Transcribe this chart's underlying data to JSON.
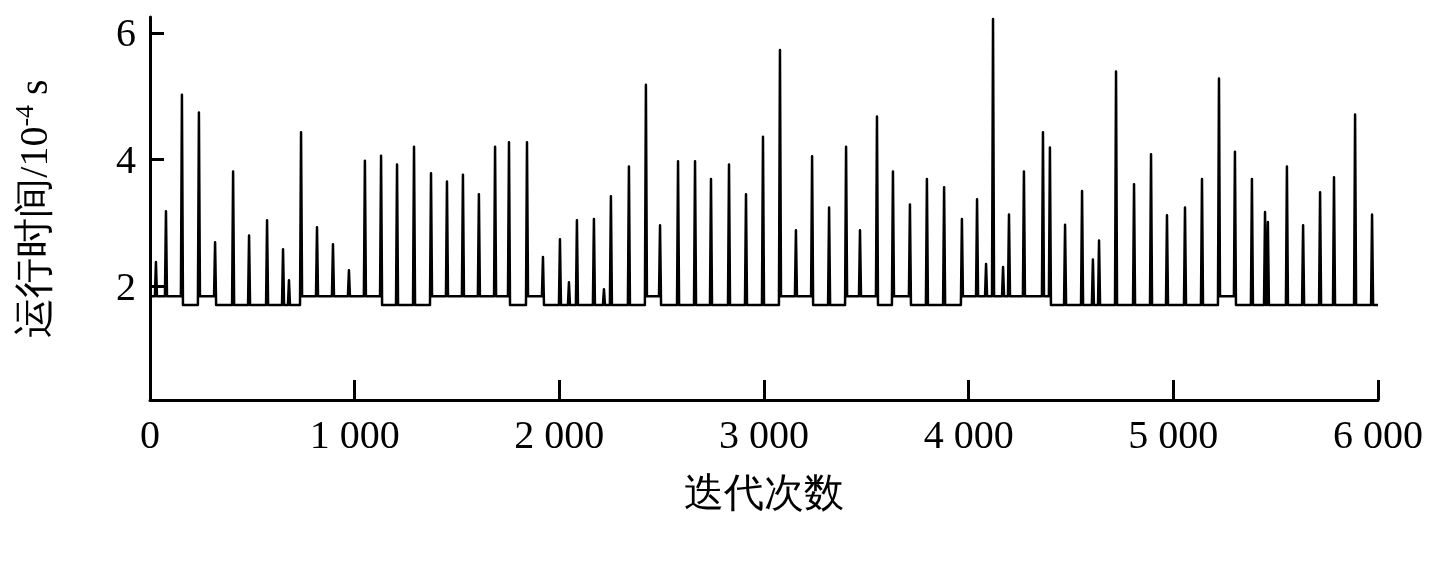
{
  "chart_data": {
    "type": "line",
    "xlabel": "迭代次数",
    "ylabel": "运行时间/10$^{-4}$ s",
    "xlim": [
      0,
      6000
    ],
    "ylim": [
      0.2,
      6.25
    ],
    "xticks": [
      0,
      {
        "value": 1000,
        "label": "1 000"
      },
      {
        "value": 2000,
        "label": "2 000"
      },
      {
        "value": 3000,
        "label": "3 000"
      },
      {
        "value": 4000,
        "label": "4 000"
      },
      {
        "value": 5000,
        "label": "5 000"
      },
      {
        "value": 6000,
        "label": "6 000"
      }
    ],
    "yticks": [
      2,
      4,
      6
    ],
    "x": [
      0,
      24,
      29,
      34,
      73,
      78,
      83,
      151,
      156,
      161,
      234,
      239,
      244,
      313,
      318,
      323,
      401,
      406,
      411,
      479,
      484,
      489,
      567,
      572,
      577,
      645,
      650,
      655,
      674,
      679,
      684,
      733,
      738,
      743,
      811,
      816,
      821,
      889,
      894,
      899,
      967,
      972,
      977,
      1045,
      1050,
      1055,
      1124,
      1129,
      1134,
      1202,
      1207,
      1212,
      1285,
      1290,
      1295,
      1368,
      1373,
      1378,
      1446,
      1451,
      1456,
      1524,
      1529,
      1534,
      1602,
      1607,
      1612,
      1681,
      1686,
      1691,
      1749,
      1754,
      1759,
      1837,
      1842,
      1847,
      1915,
      1920,
      1925,
      1998,
      2003,
      2008,
      2042,
      2047,
      2052,
      2081,
      2086,
      2091,
      2164,
      2169,
      2174,
      2213,
      2218,
      2223,
      2247,
      2252,
      2257,
      2335,
      2340,
      2345,
      2418,
      2423,
      2428,
      2487,
      2492,
      2497,
      2575,
      2580,
      2585,
      2658,
      2663,
      2668,
      2736,
      2741,
      2746,
      2824,
      2829,
      2834,
      2907,
      2912,
      2917,
      2990,
      2995,
      3000,
      3073,
      3078,
      3083,
      3151,
      3156,
      3161,
      3230,
      3235,
      3240,
      3313,
      3318,
      3323,
      3396,
      3401,
      3406,
      3464,
      3469,
      3474,
      3547,
      3552,
      3557,
      3625,
      3630,
      3635,
      3708,
      3713,
      3718,
      3791,
      3796,
      3801,
      3875,
      3880,
      3885,
      3962,
      3967,
      3972,
      4036,
      4041,
      4046,
      4080,
      4085,
      4090,
      4114,
      4119,
      4124,
      4163,
      4168,
      4173,
      4192,
      4197,
      4202,
      4265,
      4270,
      4275,
      4358,
      4363,
      4368,
      4392,
      4397,
      4402,
      4466,
      4471,
      4476,
      4549,
      4554,
      4559,
      4602,
      4607,
      4612,
      4632,
      4637,
      4642,
      4715,
      4720,
      4725,
      4803,
      4808,
      4813,
      4886,
      4891,
      4896,
      4964,
      4969,
      4974,
      5052,
      5057,
      5062,
      5135,
      5140,
      5145,
      5218,
      5223,
      5228,
      5296,
      5301,
      5306,
      5379,
      5384,
      5389,
      5443,
      5448,
      5453,
      5457,
      5462,
      5467,
      5550,
      5555,
      5560,
      5629,
      5634,
      5639,
      5712,
      5717,
      5722,
      5780,
      5785,
      5790,
      5883,
      5888,
      5893,
      5966,
      5971,
      5976,
      6000
    ],
    "series": [
      {
        "color": "#000000",
        "values": [
          1.84,
          1.84,
          2.38,
          1.84,
          1.84,
          3.18,
          1.84,
          1.84,
          5.02,
          1.7,
          1.7,
          4.74,
          1.84,
          1.84,
          2.69,
          1.7,
          1.7,
          3.81,
          1.7,
          1.7,
          2.8,
          1.7,
          1.7,
          3.04,
          1.7,
          1.7,
          2.58,
          1.7,
          1.7,
          2.09,
          1.7,
          1.7,
          4.43,
          1.84,
          1.84,
          2.93,
          1.84,
          1.84,
          2.66,
          1.84,
          1.84,
          2.25,
          1.84,
          1.84,
          3.98,
          1.84,
          1.84,
          4.06,
          1.7,
          1.7,
          3.92,
          1.7,
          1.7,
          4.2,
          1.7,
          1.7,
          3.78,
          1.84,
          1.84,
          3.65,
          1.84,
          1.84,
          3.76,
          1.84,
          1.84,
          3.45,
          1.84,
          1.84,
          4.2,
          1.84,
          1.84,
          4.27,
          1.7,
          1.7,
          4.27,
          1.84,
          1.84,
          2.46,
          1.7,
          1.7,
          2.74,
          1.7,
          1.7,
          2.06,
          1.7,
          1.7,
          3.04,
          1.7,
          1.7,
          3.06,
          1.7,
          1.7,
          1.95,
          1.7,
          1.7,
          3.42,
          1.7,
          1.7,
          3.89,
          1.7,
          1.7,
          5.18,
          1.84,
          1.84,
          2.96,
          1.7,
          1.7,
          3.97,
          1.7,
          1.7,
          3.97,
          1.7,
          1.7,
          3.69,
          1.7,
          1.7,
          3.92,
          1.7,
          1.7,
          3.45,
          1.7,
          1.7,
          4.36,
          1.7,
          1.7,
          5.73,
          1.84,
          1.84,
          2.88,
          1.84,
          1.84,
          4.05,
          1.7,
          1.7,
          3.24,
          1.7,
          1.7,
          4.2,
          1.84,
          1.84,
          2.88,
          1.84,
          1.84,
          4.68,
          1.7,
          1.7,
          3.81,
          1.84,
          1.84,
          3.29,
          1.7,
          1.7,
          3.69,
          1.7,
          1.7,
          3.56,
          1.7,
          1.7,
          3.06,
          1.84,
          1.84,
          3.37,
          1.84,
          1.84,
          2.35,
          1.84,
          1.84,
          6.22,
          1.84,
          1.84,
          2.3,
          1.84,
          1.84,
          3.13,
          1.84,
          1.84,
          3.81,
          1.84,
          1.84,
          4.43,
          1.84,
          1.84,
          4.19,
          1.7,
          1.7,
          2.97,
          1.7,
          1.7,
          3.5,
          1.7,
          1.7,
          2.42,
          1.7,
          1.7,
          2.72,
          1.7,
          1.7,
          5.39,
          1.7,
          1.7,
          3.61,
          1.7,
          1.7,
          4.08,
          1.7,
          1.7,
          3.12,
          1.7,
          1.7,
          3.24,
          1.7,
          1.7,
          3.69,
          1.7,
          1.7,
          5.28,
          1.84,
          1.84,
          4.12,
          1.7,
          1.7,
          3.69,
          1.7,
          1.7,
          3.17,
          1.7,
          1.7,
          3.01,
          1.7,
          1.7,
          3.89,
          1.7,
          1.7,
          2.96,
          1.7,
          1.7,
          3.48,
          1.7,
          1.7,
          3.72,
          1.7,
          1.7,
          4.71,
          1.7,
          1.7,
          3.13,
          1.7,
          1.7
        ]
      }
    ]
  }
}
